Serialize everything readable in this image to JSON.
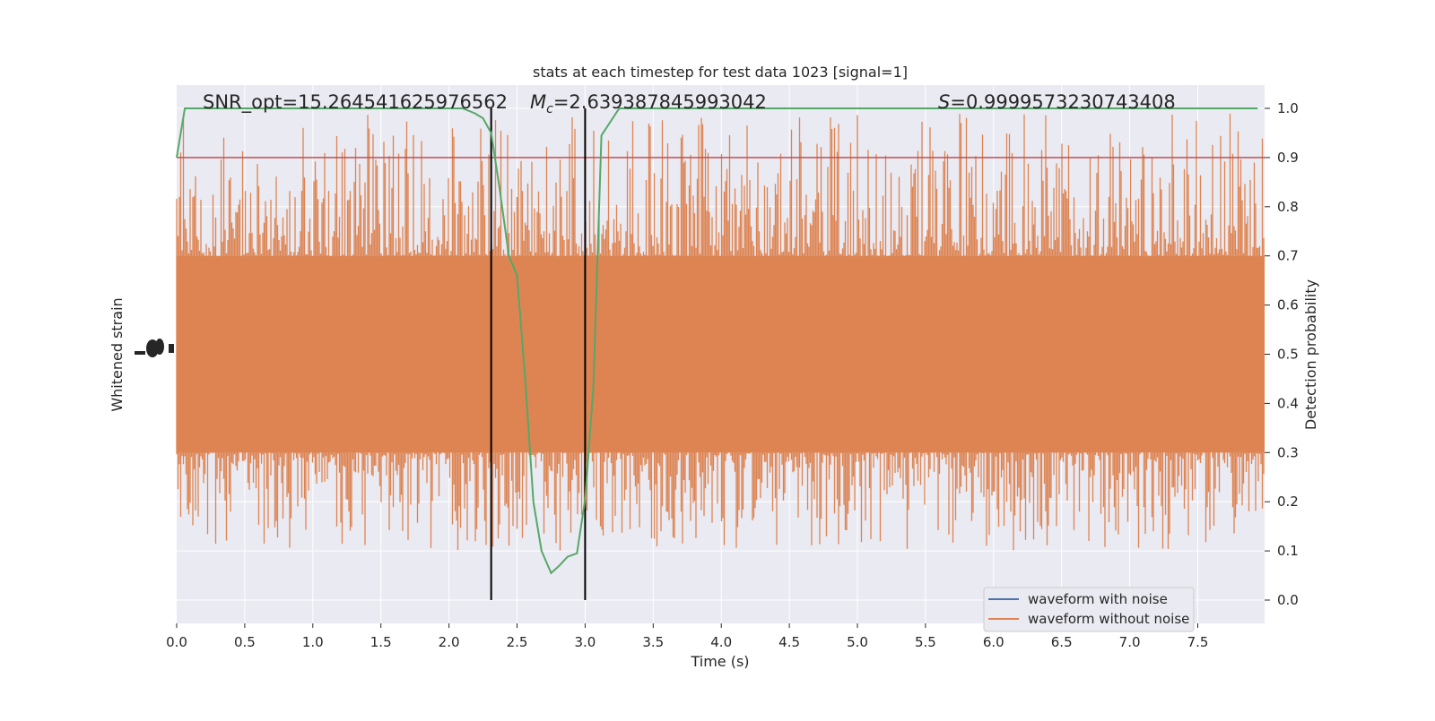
{
  "chart_data": {
    "type": "line",
    "title": "stats at each timestep for test data 1023 [signal=1]",
    "xlabel": "Time (s)",
    "ylabel_left": "Whitened strain",
    "ylabel_right": "Detection probability",
    "xlim": [
      0.0,
      8.0
    ],
    "ylim_right": [
      -0.05,
      1.05
    ],
    "x_ticks": [
      0.0,
      0.5,
      1.0,
      1.5,
      2.0,
      2.5,
      3.0,
      3.5,
      4.0,
      4.5,
      5.0,
      5.5,
      6.0,
      6.5,
      7.0,
      7.5
    ],
    "x_tick_labels": [
      "0.0",
      "0.5",
      "1.0",
      "1.5",
      "2.0",
      "2.5",
      "3.0",
      "3.5",
      "4.0",
      "4.5",
      "5.0",
      "5.5",
      "6.0",
      "6.5",
      "7.0",
      "7.5"
    ],
    "y_right_ticks": [
      0.0,
      0.1,
      0.2,
      0.3,
      0.4,
      0.5,
      0.6,
      0.7,
      0.8,
      0.9,
      1.0
    ],
    "y_right_tick_labels": [
      "0.0",
      "0.1",
      "0.2",
      "0.3",
      "0.4",
      "0.5",
      "0.6",
      "0.7",
      "0.8",
      "0.9",
      "1.0"
    ],
    "grid": true,
    "legend_position": "lower-right",
    "annotations": {
      "snr": "SNR_opt=15.264541625976562",
      "mc_symbol": "M",
      "mc_sub": "c",
      "mc_value": "=2.639387845993042",
      "s_symbol": "S",
      "s_value": "=0.9999573230743408"
    },
    "threshold": 0.9,
    "vlines": [
      2.31,
      3.0
    ],
    "series": [
      {
        "name": "waveform with noise",
        "color": "#4c72b0"
      },
      {
        "name": "waveform without noise",
        "color": "#dd8452"
      }
    ],
    "probability_color": "#55a868",
    "threshold_color": "#c44e52",
    "probability": {
      "x": [
        0.0,
        0.06,
        0.5,
        1.0,
        1.5,
        2.0,
        2.1,
        2.19,
        2.25,
        2.31,
        2.37,
        2.44,
        2.5,
        2.56,
        2.62,
        2.68,
        2.75,
        2.81,
        2.87,
        2.94,
        3.0,
        3.06,
        3.12,
        3.25,
        3.5,
        4.0,
        5.0,
        6.0,
        7.0,
        7.94
      ],
      "y": [
        0.9,
        1.0,
        1.0,
        1.0,
        1.0,
        1.0,
        1.0,
        0.99,
        0.98,
        0.95,
        0.84,
        0.7,
        0.66,
        0.45,
        0.2,
        0.1,
        0.055,
        0.07,
        0.088,
        0.095,
        0.205,
        0.43,
        0.945,
        1.0,
        1.0,
        1.0,
        1.0,
        1.0,
        1.0,
        1.0
      ]
    },
    "strain_envelope": {
      "min_prob_units": 0.1,
      "max_prob_units": 0.99,
      "core_low": 0.3,
      "core_high": 0.7
    }
  }
}
